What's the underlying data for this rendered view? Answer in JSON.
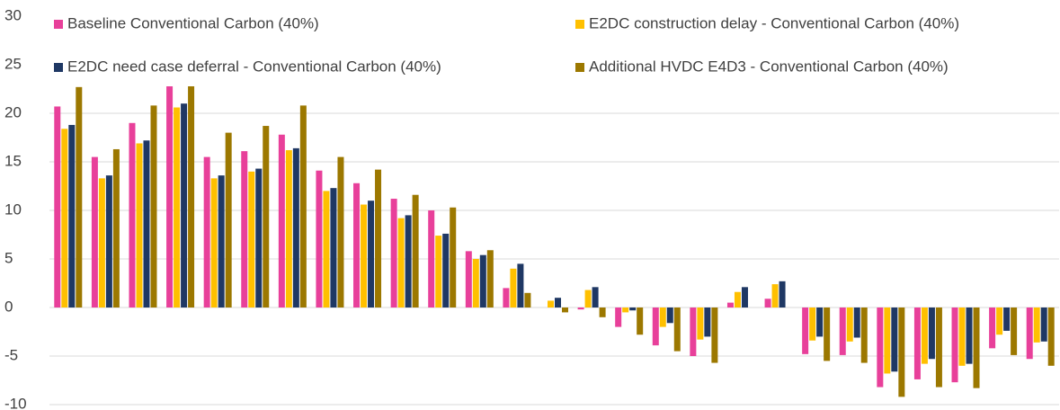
{
  "chart_data": {
    "type": "bar",
    "categories": [
      null,
      null,
      null,
      null,
      null,
      null,
      null,
      null,
      null,
      null,
      null,
      null,
      null,
      null,
      null,
      null,
      null,
      null,
      null,
      null,
      null,
      null,
      null,
      null,
      null,
      null,
      null
    ],
    "series": [
      {
        "name": "Baseline Conventional Carbon (40%)",
        "color": "#e8409a",
        "values": [
          20.7,
          15.5,
          19,
          22.8,
          15.5,
          16.1,
          17.8,
          14.1,
          12.8,
          11.2,
          10,
          5.8,
          2,
          0,
          -0.2,
          -2,
          -3.9,
          -5,
          0.5,
          0.9,
          -4.8,
          -4.9,
          -8.2,
          -7.4,
          -7.7,
          -4.2,
          -5.3
        ]
      },
      {
        "name": "E2DC construction delay - Conventional Carbon (40%)",
        "color": "#ffc000",
        "values": [
          18.4,
          13.3,
          16.9,
          20.6,
          13.3,
          14,
          16.2,
          12,
          10.6,
          9.2,
          7.4,
          5,
          4,
          0.7,
          1.8,
          -0.5,
          -2,
          -3.3,
          1.6,
          2.4,
          -3.4,
          -3.5,
          -6.8,
          -5.8,
          -6,
          -2.8,
          -3.6
        ]
      },
      {
        "name": "E2DC need case deferral - Conventional Carbon (40%)",
        "color": "#1f3864",
        "values": [
          18.8,
          13.6,
          17.2,
          21,
          13.6,
          14.3,
          16.4,
          12.3,
          11,
          9.5,
          7.6,
          5.4,
          4.5,
          1,
          2.1,
          -0.3,
          -1.6,
          -3,
          2.1,
          2.7,
          -3,
          -3.1,
          -6.6,
          -5.3,
          -5.8,
          -2.4,
          -3.5
        ]
      },
      {
        "name": "Additional HVDC E4D3 - Conventional Carbon (40%)",
        "color": "#9c7800",
        "values": [
          22.7,
          16.3,
          20.8,
          22.8,
          18,
          18.7,
          20.8,
          15.5,
          14.2,
          11.6,
          10.3,
          5.9,
          1.5,
          -0.5,
          -1,
          -2.8,
          -4.5,
          -5.7,
          0,
          0,
          -5.5,
          -5.7,
          -9.2,
          -8.2,
          -8.3,
          -4.9,
          -6
        ]
      }
    ],
    "ylim": [
      -10,
      30
    ],
    "yticks": [
      -10,
      -5,
      0,
      5,
      10,
      15,
      20,
      25,
      30
    ],
    "grid": true,
    "legend": "top"
  }
}
